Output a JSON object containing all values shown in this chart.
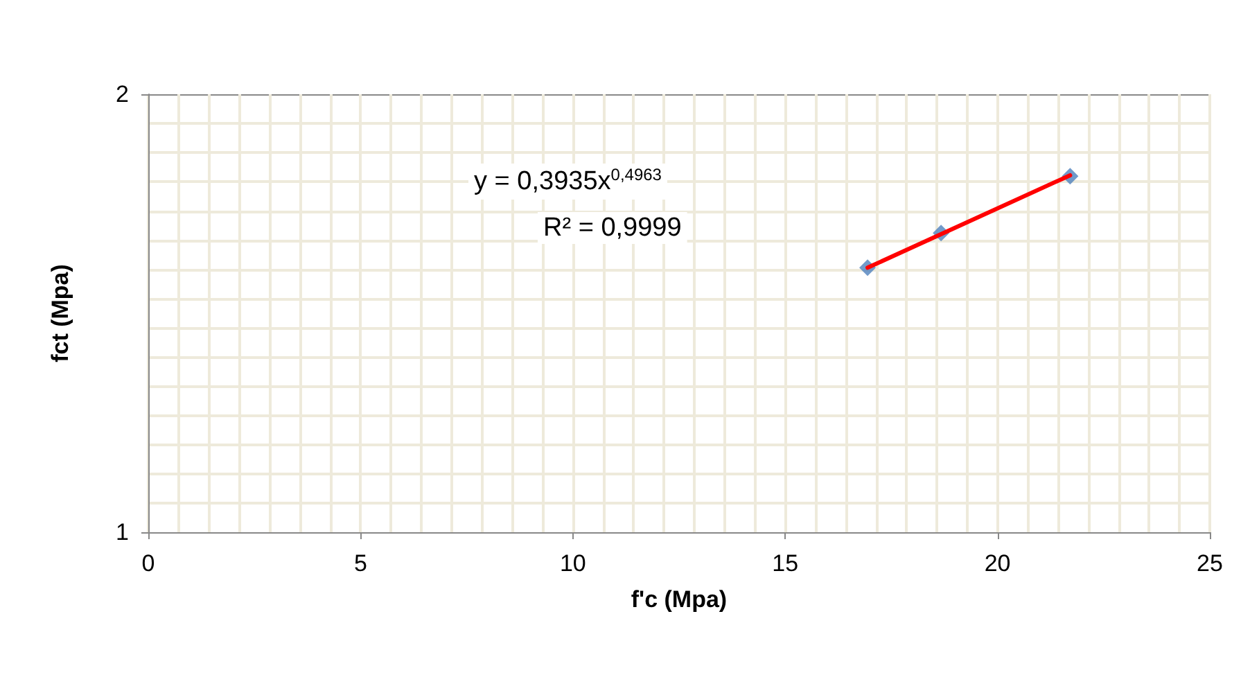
{
  "chart_data": {
    "type": "scatter",
    "xlabel": "f'c (Mpa)",
    "ylabel": "fct (Mpa)",
    "xlim": [
      0,
      25
    ],
    "xticks": [
      0,
      5,
      10,
      15,
      20,
      25
    ],
    "ylim": [
      1,
      2
    ],
    "yticks": [
      1,
      2
    ],
    "grid": true,
    "marker": "diamond",
    "series": [
      {
        "color": "#4f81bd",
        "x": [
          16.94,
          18.67,
          21.71
        ],
        "values": [
          1.604,
          1.683,
          1.813
        ]
      },
      {
        "type": "line",
        "color": "#ff0000",
        "line_style": "solid",
        "marker": "none",
        "x": [
          16.94,
          21.71
        ],
        "values": [
          1.604,
          1.815
        ]
      }
    ],
    "annotations": [
      "y = 0,3935x$^{0,4963}$",
      "R² = 0,9999"
    ]
  }
}
